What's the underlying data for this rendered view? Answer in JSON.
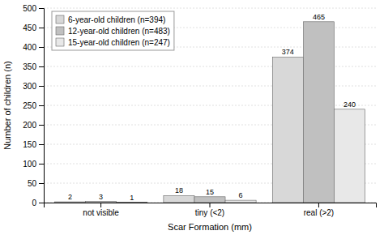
{
  "chart_data": {
    "type": "bar",
    "categories": [
      "not visible",
      "tiny (<2)",
      "real (>2)"
    ],
    "series": [
      {
        "name": "6-year-old children (n=394)",
        "color": "#d8d8d8",
        "values": [
          2,
          18,
          374
        ]
      },
      {
        "name": "12-year-old children (n=483)",
        "color": "#c0c0c0",
        "values": [
          3,
          15,
          465
        ]
      },
      {
        "name": "15-year-old children (n=247)",
        "color": "#e8e8e8",
        "values": [
          1,
          6,
          240
        ]
      }
    ],
    "xlabel": "Scar Formation (mm)",
    "ylabel": "Number of children (n)",
    "ylim": [
      0,
      500
    ],
    "yticks": [
      0,
      50,
      100,
      150,
      200,
      250,
      300,
      350,
      400,
      450,
      500
    ],
    "grid": true,
    "legend": "upper left",
    "data_labels": true
  }
}
